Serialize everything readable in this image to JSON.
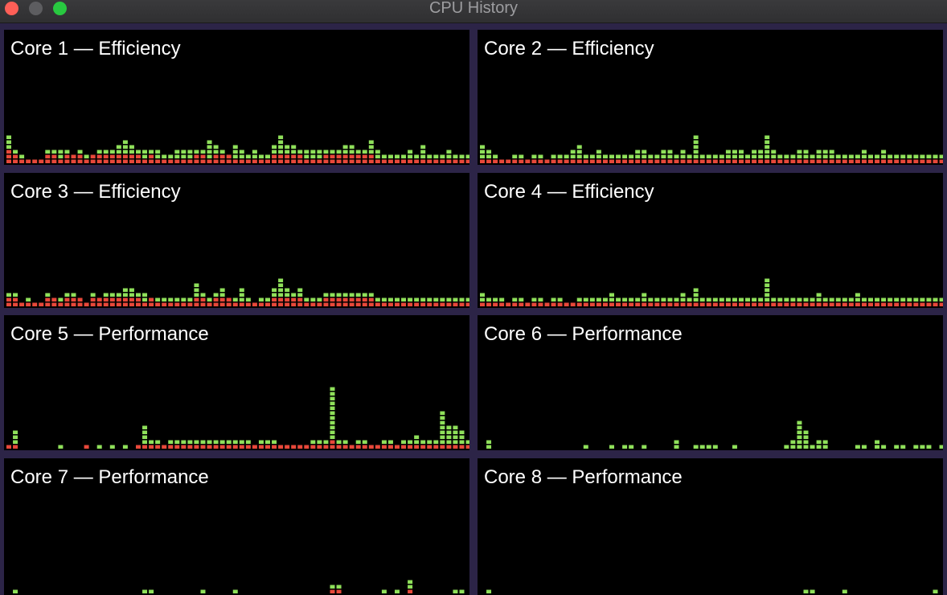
{
  "window": {
    "title": "CPU History"
  },
  "colors": {
    "user": "#8fe05a",
    "system": "#e8483a",
    "background": "#000000",
    "frame": "#2c2447"
  },
  "cores": [
    {
      "label": "Core 1 — Efficiency",
      "system": [
        3,
        2,
        1,
        1,
        1,
        1,
        2,
        2,
        1,
        2,
        2,
        2,
        1,
        2,
        2,
        2,
        2,
        2,
        2,
        2,
        2,
        1,
        2,
        1,
        1,
        1,
        1,
        1,
        1,
        2,
        2,
        1,
        2,
        2,
        2,
        1,
        1,
        1,
        1,
        1,
        1,
        2,
        2,
        2,
        2,
        2,
        1,
        1,
        1,
        2,
        2,
        2,
        2,
        2,
        2,
        2,
        2,
        1,
        1,
        1,
        1,
        1,
        1,
        1,
        1,
        1,
        1,
        1,
        1,
        1,
        1,
        1
      ],
      "user": [
        3,
        1,
        1,
        0,
        0,
        0,
        1,
        1,
        2,
        1,
        0,
        1,
        1,
        0,
        1,
        1,
        1,
        2,
        3,
        2,
        1,
        2,
        1,
        2,
        1,
        1,
        2,
        2,
        2,
        1,
        1,
        4,
        2,
        1,
        0,
        3,
        2,
        1,
        2,
        1,
        1,
        2,
        4,
        2,
        2,
        1,
        2,
        2,
        2,
        1,
        1,
        1,
        2,
        2,
        1,
        1,
        3,
        2,
        1,
        1,
        1,
        1,
        2,
        1,
        3,
        1,
        1,
        1,
        2,
        1,
        1,
        1
      ]
    },
    {
      "label": "Core 2 — Efficiency",
      "system": [
        1,
        1,
        1,
        1,
        1,
        1,
        1,
        1,
        1,
        1,
        1,
        1,
        1,
        1,
        1,
        1,
        1,
        1,
        1,
        1,
        1,
        1,
        1,
        1,
        1,
        1,
        1,
        1,
        1,
        1,
        1,
        1,
        1,
        1,
        1,
        1,
        1,
        1,
        1,
        1,
        1,
        1,
        1,
        1,
        1,
        1,
        1,
        1,
        1,
        1,
        1,
        1,
        1,
        1,
        1,
        1,
        1,
        1,
        1,
        1,
        1,
        1,
        1,
        1,
        1,
        1,
        1,
        1,
        1,
        1,
        1,
        1
      ],
      "user": [
        3,
        2,
        1,
        0,
        0,
        1,
        1,
        0,
        1,
        1,
        0,
        1,
        1,
        1,
        2,
        3,
        1,
        1,
        2,
        1,
        1,
        1,
        1,
        1,
        2,
        2,
        1,
        1,
        2,
        2,
        1,
        2,
        1,
        5,
        1,
        1,
        1,
        1,
        2,
        2,
        2,
        1,
        2,
        2,
        5,
        2,
        1,
        1,
        1,
        2,
        2,
        1,
        2,
        2,
        2,
        1,
        1,
        1,
        1,
        2,
        1,
        1,
        2,
        1,
        1,
        1,
        1,
        1,
        1,
        1,
        1,
        1
      ]
    },
    {
      "label": "Core 3 — Efficiency",
      "system": [
        2,
        2,
        1,
        1,
        1,
        1,
        2,
        2,
        1,
        2,
        2,
        2,
        1,
        2,
        2,
        2,
        2,
        2,
        2,
        2,
        2,
        1,
        2,
        1,
        1,
        1,
        1,
        1,
        1,
        2,
        2,
        1,
        2,
        2,
        2,
        1,
        1,
        1,
        1,
        1,
        1,
        2,
        2,
        2,
        2,
        2,
        1,
        1,
        1,
        2,
        2,
        2,
        2,
        2,
        2,
        2,
        2,
        1,
        1,
        1,
        1,
        1,
        1,
        1,
        1,
        1,
        1,
        1,
        1,
        1,
        1,
        1
      ],
      "user": [
        1,
        1,
        0,
        1,
        0,
        0,
        1,
        0,
        1,
        1,
        1,
        0,
        0,
        1,
        0,
        1,
        1,
        1,
        2,
        2,
        1,
        2,
        0,
        1,
        1,
        1,
        1,
        1,
        1,
        3,
        1,
        1,
        1,
        2,
        0,
        1,
        3,
        1,
        0,
        1,
        1,
        2,
        4,
        2,
        1,
        2,
        1,
        1,
        1,
        1,
        1,
        1,
        1,
        1,
        1,
        1,
        1,
        1,
        1,
        1,
        1,
        1,
        1,
        1,
        1,
        1,
        1,
        1,
        1,
        1,
        1,
        1
      ]
    },
    {
      "label": "Core 4 — Efficiency",
      "system": [
        1,
        1,
        1,
        1,
        1,
        1,
        1,
        1,
        1,
        1,
        1,
        1,
        1,
        1,
        1,
        1,
        1,
        1,
        1,
        1,
        1,
        1,
        1,
        1,
        1,
        1,
        1,
        1,
        1,
        1,
        1,
        1,
        1,
        1,
        1,
        1,
        1,
        1,
        1,
        1,
        1,
        1,
        1,
        1,
        1,
        1,
        1,
        1,
        1,
        1,
        1,
        1,
        1,
        1,
        1,
        1,
        1,
        1,
        1,
        1,
        1,
        1,
        1,
        1,
        1,
        1,
        1,
        1,
        1,
        1,
        1,
        1
      ],
      "user": [
        2,
        1,
        1,
        1,
        0,
        1,
        1,
        0,
        1,
        1,
        0,
        1,
        1,
        0,
        0,
        1,
        1,
        1,
        1,
        1,
        2,
        1,
        1,
        1,
        1,
        2,
        1,
        1,
        1,
        1,
        1,
        2,
        1,
        3,
        1,
        1,
        1,
        1,
        1,
        1,
        1,
        1,
        1,
        1,
        5,
        1,
        1,
        1,
        1,
        1,
        1,
        1,
        2,
        1,
        1,
        1,
        1,
        1,
        2,
        1,
        1,
        1,
        1,
        1,
        1,
        1,
        1,
        1,
        1,
        1,
        1,
        1
      ]
    },
    {
      "label": "Core 5 — Performance",
      "system": [
        1,
        1,
        0,
        0,
        0,
        0,
        0,
        0,
        0,
        0,
        0,
        0,
        1,
        0,
        0,
        0,
        0,
        0,
        0,
        0,
        1,
        1,
        1,
        1,
        1,
        1,
        1,
        1,
        1,
        1,
        1,
        1,
        1,
        1,
        1,
        1,
        1,
        1,
        1,
        1,
        1,
        1,
        1,
        1,
        1,
        1,
        1,
        1,
        1,
        1,
        2,
        1,
        1,
        1,
        1,
        1,
        1,
        1,
        1,
        1,
        1,
        1,
        1,
        1,
        1,
        1,
        1,
        1,
        1,
        1,
        1,
        1
      ],
      "user": [
        0,
        3,
        0,
        0,
        0,
        0,
        0,
        0,
        1,
        0,
        0,
        0,
        0,
        0,
        1,
        0,
        1,
        0,
        1,
        0,
        0,
        4,
        1,
        1,
        0,
        1,
        1,
        1,
        1,
        1,
        1,
        1,
        1,
        1,
        1,
        1,
        1,
        1,
        0,
        1,
        1,
        1,
        0,
        0,
        0,
        0,
        0,
        1,
        1,
        1,
        11,
        1,
        1,
        0,
        1,
        1,
        0,
        0,
        1,
        1,
        0,
        1,
        1,
        2,
        1,
        1,
        1,
        7,
        4,
        4,
        3,
        1
      ]
    },
    {
      "label": "Core 6 — Performance",
      "system": [
        0,
        0,
        0,
        0,
        0,
        0,
        0,
        0,
        0,
        0,
        0,
        0,
        0,
        0,
        0,
        0,
        0,
        0,
        0,
        0,
        0,
        0,
        0,
        0,
        0,
        0,
        0,
        0,
        0,
        0,
        0,
        0,
        0,
        0,
        0,
        0,
        0,
        0,
        0,
        0,
        0,
        0,
        0,
        0,
        0,
        0,
        0,
        0,
        0,
        0,
        0,
        0,
        0,
        0,
        0,
        0,
        0,
        0,
        0,
        0,
        0,
        0,
        0,
        0,
        0,
        0,
        0,
        0,
        0,
        0,
        0,
        0
      ],
      "user": [
        0,
        2,
        0,
        0,
        0,
        0,
        0,
        0,
        0,
        0,
        0,
        0,
        0,
        0,
        0,
        0,
        1,
        0,
        0,
        0,
        1,
        0,
        1,
        1,
        0,
        1,
        0,
        0,
        0,
        0,
        2,
        0,
        0,
        1,
        1,
        1,
        1,
        0,
        0,
        1,
        0,
        0,
        0,
        0,
        0,
        0,
        0,
        1,
        2,
        6,
        4,
        1,
        2,
        2,
        0,
        0,
        0,
        0,
        1,
        1,
        0,
        2,
        1,
        0,
        1,
        1,
        0,
        1,
        1,
        1,
        0,
        1
      ]
    },
    {
      "label": "Core 7 — Performance",
      "system": [
        0,
        0,
        0,
        0,
        0,
        0,
        0,
        0,
        0,
        0,
        0,
        0,
        0,
        0,
        0,
        0,
        0,
        0,
        0,
        0,
        0,
        0,
        0,
        0,
        0,
        0,
        0,
        0,
        0,
        0,
        0,
        0,
        0,
        0,
        0,
        0,
        0,
        0,
        0,
        0,
        0,
        0,
        0,
        0,
        0,
        0,
        0,
        0,
        0,
        0,
        1,
        1,
        0,
        0,
        0,
        0,
        0,
        0,
        0,
        0,
        0,
        0,
        1,
        0,
        0,
        0,
        0,
        0,
        0,
        0,
        0,
        0
      ],
      "user": [
        0,
        1,
        0,
        0,
        0,
        0,
        0,
        0,
        0,
        0,
        0,
        0,
        0,
        0,
        0,
        0,
        0,
        0,
        0,
        0,
        0,
        1,
        1,
        0,
        0,
        0,
        0,
        0,
        0,
        0,
        1,
        0,
        0,
        0,
        0,
        1,
        0,
        0,
        0,
        0,
        0,
        0,
        0,
        0,
        0,
        0,
        0,
        0,
        0,
        0,
        1,
        1,
        0,
        0,
        0,
        0,
        0,
        0,
        1,
        0,
        1,
        0,
        2,
        0,
        0,
        0,
        0,
        0,
        0,
        1,
        1,
        0
      ]
    },
    {
      "label": "Core 8 — Performance",
      "system": [
        0,
        0,
        0,
        0,
        0,
        0,
        0,
        0,
        0,
        0,
        0,
        0,
        0,
        0,
        0,
        0,
        0,
        0,
        0,
        0,
        0,
        0,
        0,
        0,
        0,
        0,
        0,
        0,
        0,
        0,
        0,
        0,
        0,
        0,
        0,
        0,
        0,
        0,
        0,
        0,
        0,
        0,
        0,
        0,
        0,
        0,
        0,
        0,
        0,
        0,
        0,
        0,
        0,
        0,
        0,
        0,
        0,
        0,
        0,
        0,
        0,
        0,
        0,
        0,
        0,
        0,
        0,
        0,
        0,
        0,
        0,
        0
      ],
      "user": [
        0,
        1,
        0,
        0,
        0,
        0,
        0,
        0,
        0,
        0,
        0,
        0,
        0,
        0,
        0,
        0,
        0,
        0,
        0,
        0,
        0,
        0,
        0,
        0,
        0,
        0,
        0,
        0,
        0,
        0,
        0,
        0,
        0,
        0,
        0,
        0,
        0,
        0,
        0,
        0,
        0,
        0,
        0,
        0,
        0,
        0,
        0,
        0,
        0,
        0,
        1,
        1,
        0,
        0,
        0,
        0,
        1,
        0,
        0,
        0,
        0,
        0,
        0,
        0,
        0,
        0,
        0,
        0,
        0,
        0,
        1,
        0
      ]
    }
  ]
}
